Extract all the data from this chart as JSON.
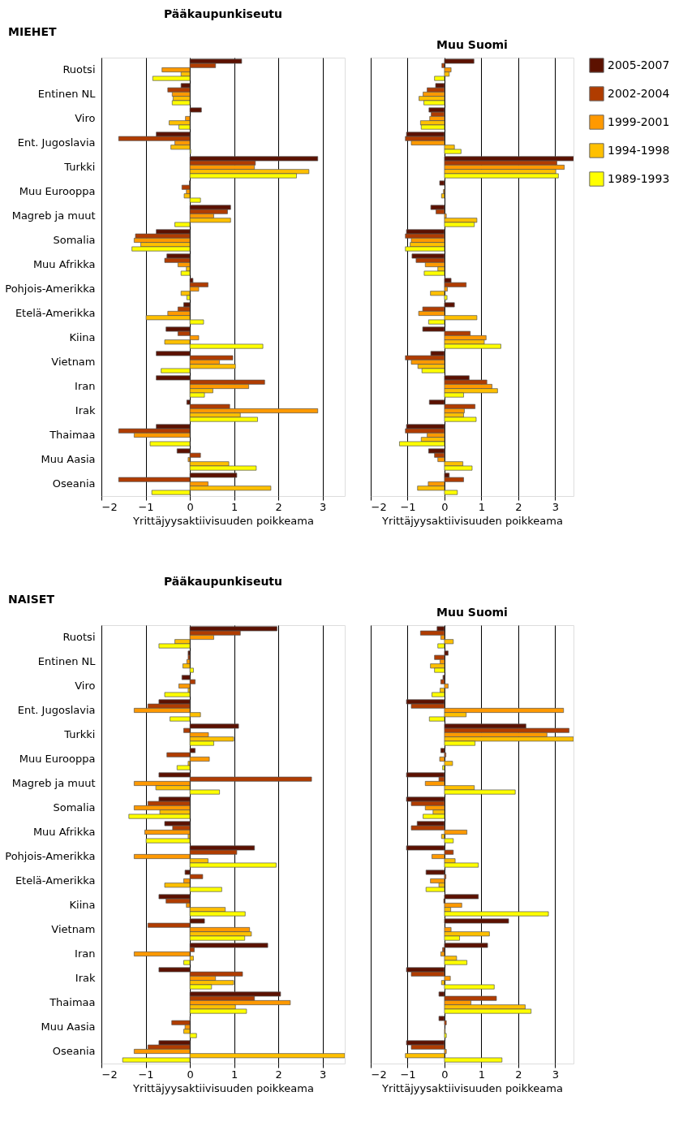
{
  "chart_data": [
    {
      "type": "bar",
      "orientation": "horizontal",
      "title": "Pääkaupunkiseutu",
      "xlabel": "Yrittäjyysaktiivisuuden poikkeama",
      "annotations": [
        "MIEHET"
      ],
      "categories": [
        "Ruotsi",
        "Entinen NL",
        "Viro",
        "Ent. Jugoslavia",
        "Turkki",
        "Muu Eurooppa",
        "Magreb ja muut",
        "Somalia",
        "Muu Afrikka",
        "Pohjois-Amerikka",
        "Etelä-Amerikka",
        "Kiina",
        "Vietnam",
        "Iran",
        "Irak",
        "Thaimaa",
        "Muu Aasia",
        "Oseania"
      ],
      "series": [
        {
          "name": "2005-2007",
          "color": "#5c1100",
          "values": [
            1.17,
            -0.2,
            0.26,
            -0.76,
            2.89,
            -0.01,
            0.92,
            -0.76,
            -0.52,
            0.07,
            -0.14,
            -0.54,
            -0.76,
            -0.76,
            -0.07,
            -0.76,
            -0.29,
            1.06
          ]
        },
        {
          "name": "2002-2004",
          "color": "#b03c00",
          "values": [
            0.58,
            -0.5,
            null,
            -1.61,
            1.48,
            -0.18,
            0.85,
            -1.23,
            -0.57,
            0.41,
            -0.27,
            -0.27,
            0.97,
            1.69,
            0.9,
            -1.61,
            0.24,
            -1.61
          ]
        },
        {
          "name": "1999-2001",
          "color": "#ff9900",
          "values": [
            -0.63,
            -0.4,
            -0.1,
            -0.34,
            1.46,
            -0.08,
            0.54,
            -1.26,
            -0.27,
            0.2,
            -0.5,
            0.2,
            0.67,
            1.33,
            2.89,
            -1.26,
            -0.04,
            0.41
          ]
        },
        {
          "name": "1994-1998",
          "color": "#ffc000",
          "values": [
            -0.2,
            -0.38,
            -0.47,
            -0.43,
            2.69,
            -0.13,
            0.92,
            -1.11,
            -0.08,
            -0.2,
            -0.99,
            -0.57,
            1.03,
            0.52,
            1.14,
            null,
            0.88,
            1.83
          ]
        },
        {
          "name": "1989-1993",
          "color": "#ffff00",
          "values": [
            -0.84,
            -0.4,
            -0.25,
            0.02,
            2.41,
            0.24,
            -0.34,
            -1.31,
            -0.2,
            -0.07,
            0.31,
            1.65,
            -0.65,
            0.33,
            1.53,
            -0.9,
            1.5,
            -0.86
          ]
        }
      ],
      "xlim": [
        -2,
        3.5
      ],
      "xticks": [
        -2,
        -1,
        0,
        1,
        2,
        3
      ],
      "grid": "x",
      "legend": "right"
    },
    {
      "type": "bar",
      "orientation": "horizontal",
      "title": "Muu Suomi",
      "xlabel": "Yrittäjyysaktiivisuuden poikkeama",
      "categories": [
        null,
        null,
        null,
        null,
        null,
        null,
        null,
        null,
        null,
        null,
        null,
        null,
        null,
        null,
        null,
        null,
        null,
        null
      ],
      "series": [
        {
          "color": "#5c1100",
          "values": [
            0.8,
            -0.24,
            -0.42,
            -1.03,
            3.5,
            -0.13,
            -0.37,
            -1.03,
            -0.88,
            0.18,
            0.27,
            -0.59,
            -0.37,
            0.67,
            -0.41,
            -1.03,
            -0.43,
            0.13
          ]
        },
        {
          "color": "#b03c00",
          "values": [
            -0.07,
            -0.47,
            -0.36,
            -1.06,
            3.05,
            null,
            -0.23,
            -1.06,
            -0.77,
            0.59,
            -0.59,
            0.7,
            -1.06,
            1.15,
            0.83,
            -1.06,
            -0.27,
            0.52
          ]
        },
        {
          "color": "#ff9900",
          "values": [
            0.18,
            -0.58,
            -0.4,
            -0.9,
            3.25,
            -0.03,
            0.05,
            -0.9,
            -0.52,
            0.08,
            -0.7,
            1.13,
            -0.9,
            1.29,
            0.54,
            -0.47,
            -0.18,
            -0.44
          ]
        },
        {
          "color": "#ffc000",
          "values": [
            0.13,
            -0.69,
            -0.65,
            0.27,
            3.02,
            -0.08,
            0.88,
            -0.93,
            -0.18,
            -0.38,
            0.88,
            1.08,
            -0.72,
            1.44,
            0.52,
            -0.63,
            0.5,
            -0.73
          ]
        },
        {
          "color": "#ffff00",
          "values": [
            -0.27,
            -0.56,
            -0.63,
            0.45,
            3.09,
            null,
            0.81,
            -1.06,
            -0.55,
            0.07,
            -0.43,
            1.53,
            -0.61,
            0.52,
            0.86,
            -1.22,
            0.75,
            0.35
          ]
        }
      ],
      "xlim": [
        -2,
        3.5
      ],
      "xticks": [
        -2,
        -1,
        0,
        1,
        2,
        3
      ],
      "grid": "x",
      "legend": false,
      "tick_labels": "x"
    },
    {
      "type": "bar",
      "orientation": "horizontal",
      "title": "Pääkaupunkiseutu",
      "xlabel": "Yrittäjyysaktiivisuuden poikkeama",
      "annotations": [
        "NAISET"
      ],
      "categories": [
        "Ruotsi",
        "Entinen NL",
        "Viro",
        "Ent. Jugoslavia",
        "Turkki",
        "Muu Eurooppa",
        "Magreb ja muut",
        "Somalia",
        "Muu Afrikka",
        "Pohjois-Amerikka",
        "Etelä-Amerikka",
        "Kiina",
        "Vietnam",
        "Iran",
        "Irak",
        "Thaimaa",
        "Muu Aasia",
        "Oseania"
      ],
      "series": [
        {
          "color": "#5c1100",
          "values": [
            1.97,
            -0.04,
            -0.18,
            -0.7,
            1.1,
            0.12,
            -0.7,
            -0.7,
            -0.57,
            1.46,
            -0.11,
            -0.7,
            0.33,
            1.76,
            -0.7,
            2.05,
            0.01,
            -0.7
          ]
        },
        {
          "color": "#b03c00",
          "values": [
            1.14,
            -0.04,
            0.12,
            -0.95,
            -0.14,
            -0.52,
            2.75,
            -0.95,
            -0.39,
            1.06,
            0.29,
            -0.54,
            -0.95,
            0.1,
            1.19,
            1.46,
            -0.41,
            -0.95
          ]
        },
        {
          "color": "#ff9900",
          "values": [
            0.54,
            -0.07,
            -0.25,
            -1.26,
            0.42,
            0.44,
            -1.26,
            -1.26,
            -1.02,
            -1.26,
            -0.14,
            -0.08,
            1.35,
            -1.26,
            0.58,
            2.27,
            -0.11,
            -1.26
          ]
        },
        {
          "color": "#ffc000",
          "values": [
            -0.34,
            -0.16,
            -0.04,
            0.24,
            0.99,
            -0.04,
            -0.77,
            -0.68,
            -0.04,
            0.41,
            -0.57,
            0.8,
            1.39,
            0.08,
            0.99,
            1.03,
            -0.14,
            3.5
          ]
        },
        {
          "color": "#ffff00",
          "values": [
            -0.7,
            0.08,
            -0.57,
            -0.45,
            0.54,
            -0.29,
            0.67,
            -1.38,
            -0.99,
            1.95,
            0.72,
            1.25,
            1.24,
            -0.14,
            0.49,
            1.28,
            0.15,
            -1.52
          ]
        }
      ],
      "xlim": [
        -2,
        3.5
      ],
      "xticks": [
        -2,
        -1,
        0,
        1,
        2,
        3
      ],
      "grid": "x",
      "legend": false
    },
    {
      "type": "bar",
      "orientation": "horizontal",
      "title": "Muu Suomi",
      "xlabel": "Yrittäjyysaktiivisuuden poikkeama",
      "categories": [
        null,
        null,
        null,
        null,
        null,
        null,
        null,
        null,
        null,
        null,
        null,
        null,
        null,
        null,
        null,
        null,
        null,
        null
      ],
      "series": [
        {
          "color": "#5c1100",
          "values": [
            -0.2,
            0.1,
            -0.04,
            -1.03,
            2.21,
            -0.1,
            -1.03,
            -1.03,
            -0.74,
            -1.03,
            -0.5,
            0.92,
            1.74,
            1.17,
            -1.03,
            -0.15,
            -0.15,
            -1.03
          ]
        },
        {
          "color": "#b03c00",
          "values": [
            -0.65,
            -0.27,
            -0.1,
            -0.9,
            3.38,
            0.04,
            -0.15,
            -0.9,
            -0.9,
            0.24,
            0.04,
            -0.02,
            null,
            -0.05,
            -0.9,
            1.41,
            0.05,
            -0.9
          ]
        },
        {
          "color": "#ff9900",
          "values": [
            -0.1,
            -0.12,
            0.1,
            3.23,
            2.78,
            -0.13,
            -0.52,
            -0.52,
            0.61,
            -0.34,
            -0.38,
            0.47,
            0.18,
            -0.1,
            0.16,
            0.72,
            null,
            0.05
          ]
        },
        {
          "color": "#ffc000",
          "values": [
            0.24,
            -0.38,
            -0.12,
            0.59,
            3.5,
            0.22,
            0.81,
            -0.31,
            -0.08,
            0.29,
            -0.15,
            0.17,
            1.22,
            0.33,
            -0.08,
            2.19,
            0.02,
            -1.06
          ]
        },
        {
          "color": "#ffff00",
          "values": [
            -0.18,
            -0.27,
            -0.34,
            -0.41,
            0.83,
            -0.05,
            1.92,
            -0.58,
            0.24,
            0.92,
            -0.5,
            2.82,
            0.41,
            0.61,
            1.35,
            2.35,
            0.05,
            1.56
          ]
        }
      ],
      "xlim": [
        -2,
        3.5
      ],
      "xticks": [
        -2,
        -1,
        0,
        1,
        2,
        3
      ],
      "grid": "x",
      "legend": false,
      "tick_labels": "x"
    }
  ]
}
